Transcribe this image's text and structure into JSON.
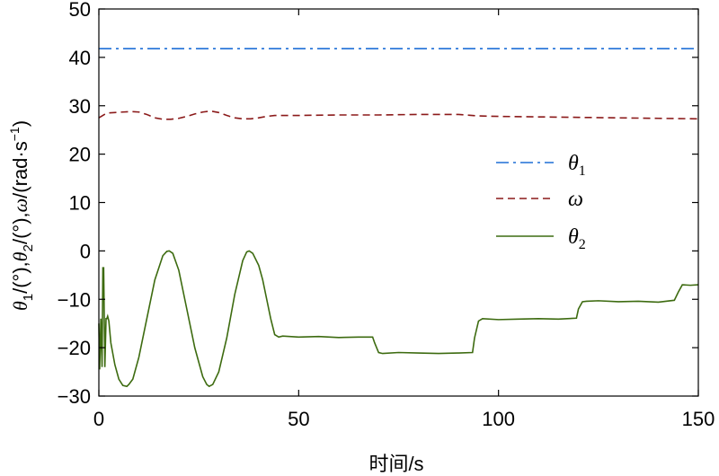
{
  "chart_data": {
    "type": "line",
    "xlabel": "时间/s",
    "ylabel_parts": {
      "theta": "θ",
      "sub1": "1",
      "deg1": "/(°),",
      "sub2": "2",
      "deg2": "/(°),",
      "omega": "ω",
      "unit": "/(rad·s",
      "exp": "−1",
      "close": ")"
    },
    "xlim": [
      0,
      150
    ],
    "ylim": [
      -30,
      50
    ],
    "x_ticks": [
      0,
      50,
      100,
      150
    ],
    "x_tick_labels": [
      "0",
      "50",
      "100",
      "150"
    ],
    "y_ticks": [
      -30,
      -20,
      -10,
      0,
      10,
      20,
      30,
      40,
      50
    ],
    "y_tick_labels": [
      "−30",
      "−20",
      "−10",
      "0",
      "10",
      "20",
      "30",
      "40",
      "50"
    ],
    "grid": false,
    "legend_position": "right-middle",
    "series": [
      {
        "name": "θ1",
        "label_main": "θ",
        "label_sub": "1",
        "color": "#1f6fd6",
        "style": "dashdot",
        "x": [
          0,
          150
        ],
        "y": [
          41.8,
          41.8
        ]
      },
      {
        "name": "ω",
        "label_main": "ω",
        "label_sub": "",
        "color": "#8b1a1a",
        "style": "dashed",
        "x": [
          0,
          2,
          4,
          6,
          8,
          10,
          12,
          14,
          16,
          18,
          20,
          22,
          24,
          26,
          28,
          30,
          32,
          34,
          36,
          38,
          40,
          42,
          44,
          46,
          50,
          60,
          70,
          80,
          90,
          95,
          100,
          110,
          120,
          130,
          140,
          150
        ],
        "y": [
          27.5,
          28.5,
          28.6,
          28.7,
          28.8,
          28.7,
          28.2,
          27.5,
          27.2,
          27.2,
          27.4,
          27.8,
          28.3,
          28.7,
          28.9,
          28.6,
          28.0,
          27.5,
          27.3,
          27.3,
          27.5,
          27.8,
          28.0,
          28.0,
          28.0,
          28.1,
          28.1,
          28.2,
          28.2,
          27.9,
          27.8,
          27.7,
          27.6,
          27.5,
          27.4,
          27.3
        ]
      },
      {
        "name": "θ2",
        "label_main": "θ",
        "label_sub": "2",
        "color": "#3d6b10",
        "style": "solid",
        "x": [
          0,
          0.2,
          0.5,
          0.8,
          1.0,
          1.2,
          1.5,
          1.8,
          2.0,
          2.2,
          2.5,
          3.0,
          4.0,
          5.0,
          6.0,
          7.0,
          7.5,
          8.5,
          10.0,
          12.0,
          14.0,
          16.0,
          17.0,
          17.6,
          18.5,
          20.0,
          22.0,
          24.0,
          26.0,
          27.0,
          27.6,
          28.5,
          30.0,
          32.0,
          34.0,
          36.0,
          37.0,
          37.6,
          38.5,
          40.0,
          41.0,
          42.0,
          43.0,
          44.0,
          45.0,
          46.0,
          50.0,
          55.0,
          60.0,
          65.0,
          68.5,
          69.0,
          70.0,
          71.0,
          75.0,
          80.0,
          85.0,
          90.0,
          93.5,
          94.0,
          95.0,
          96.0,
          100.0,
          105.0,
          110.0,
          115.0,
          119.5,
          120.0,
          121.0,
          122.0,
          125.0,
          130.0,
          135.0,
          140.0,
          144.0,
          145.0,
          146.0,
          148.0,
          150.0
        ],
        "y": [
          -15,
          -24.5,
          -14,
          -24,
          -3.5,
          -3.5,
          -24,
          -14,
          -14,
          -13.5,
          -14.5,
          -19,
          -23.5,
          -26.5,
          -27.8,
          -28,
          -27.6,
          -26.5,
          -22,
          -14,
          -6,
          -1,
          -0.1,
          0,
          -0.5,
          -4,
          -12,
          -20,
          -26,
          -27.6,
          -28,
          -27.6,
          -25,
          -18,
          -9,
          -2,
          -0.2,
          0,
          -0.5,
          -3,
          -6,
          -10,
          -14,
          -17.3,
          -17.8,
          -17.6,
          -17.8,
          -17.7,
          -17.9,
          -17.8,
          -17.8,
          -19,
          -21,
          -21.2,
          -21,
          -21.1,
          -21.2,
          -21.1,
          -21.0,
          -18,
          -14.5,
          -14,
          -14.2,
          -14.1,
          -14.0,
          -14.1,
          -13.9,
          -12,
          -10.5,
          -10.4,
          -10.3,
          -10.5,
          -10.4,
          -10.6,
          -10.2,
          -8.5,
          -7,
          -7.1,
          -7.0
        ]
      }
    ]
  }
}
